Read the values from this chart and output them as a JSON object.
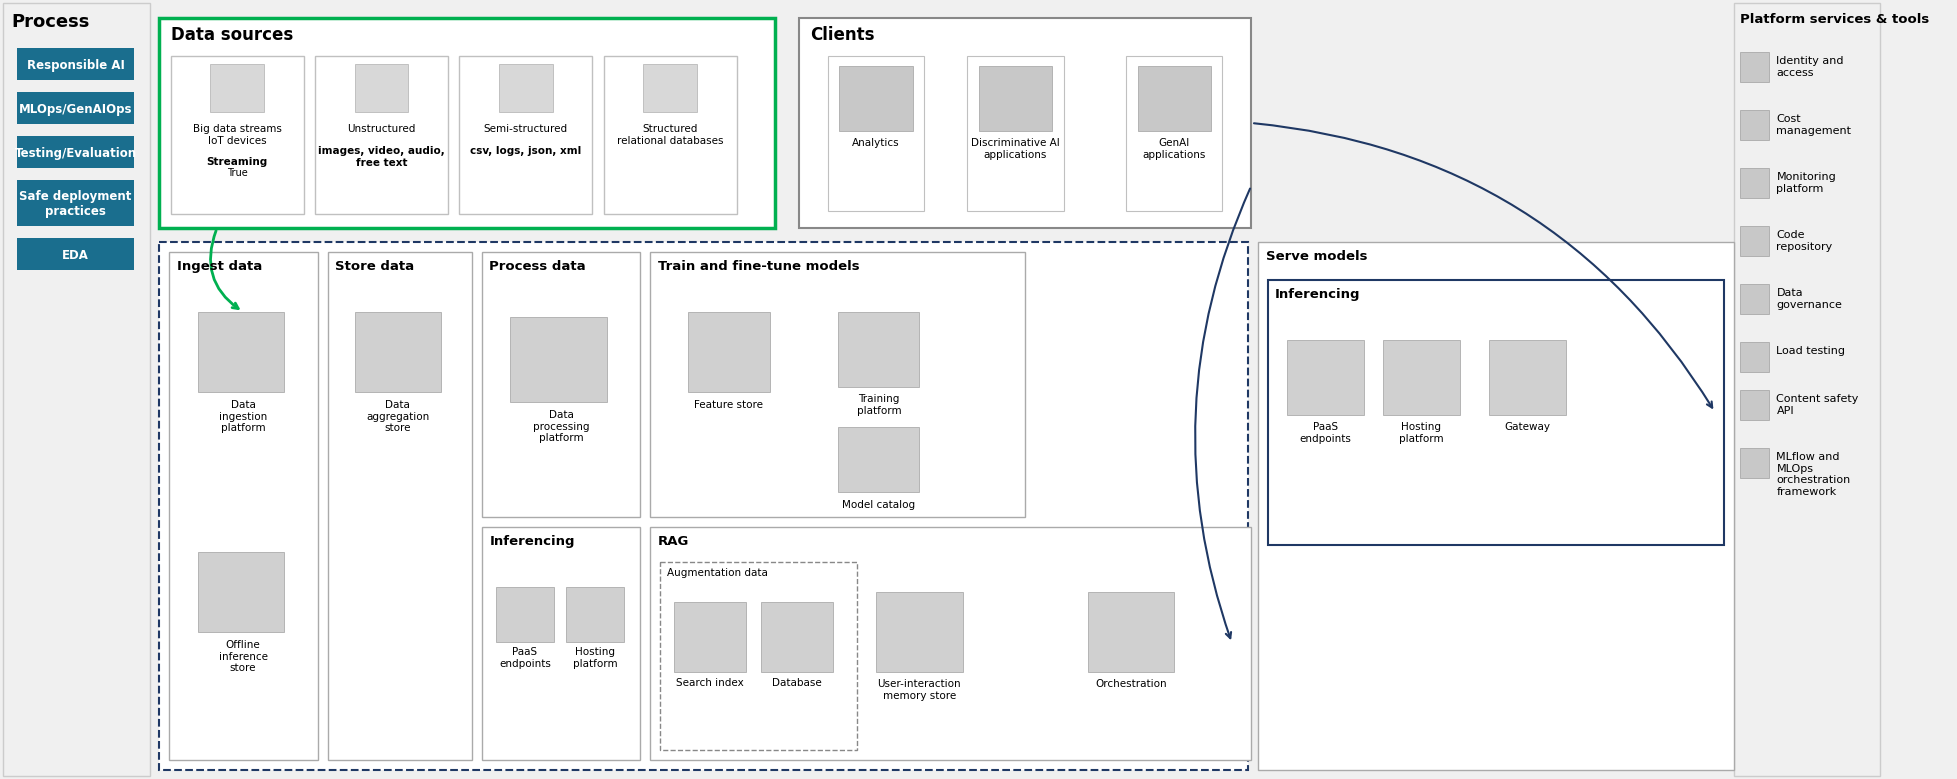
{
  "bg_color": "#f0f0f0",
  "white": "#ffffff",
  "teal_color": "#1a6e8e",
  "green_border": "#00b050",
  "dark_blue_border": "#1f3864",
  "gray_icon": "#b0b0b0",
  "light_gray_box": "#e8e8e8",
  "process_title": "Process",
  "process_buttons": [
    "Responsible AI",
    "MLOps/GenAIOps",
    "Testing/Evaluation",
    "Safe deployment\npractices",
    "EDA"
  ],
  "platform_title": "Platform services & tools",
  "platform_items": [
    "Identity and\naccess",
    "Cost\nmanagement",
    "Monitoring\nplatform",
    "Code\nrepository",
    "Data\ngovernance",
    "Load testing",
    "Content safety\nAPI",
    "MLflow and\nMLOps\norchestration\nframework"
  ]
}
